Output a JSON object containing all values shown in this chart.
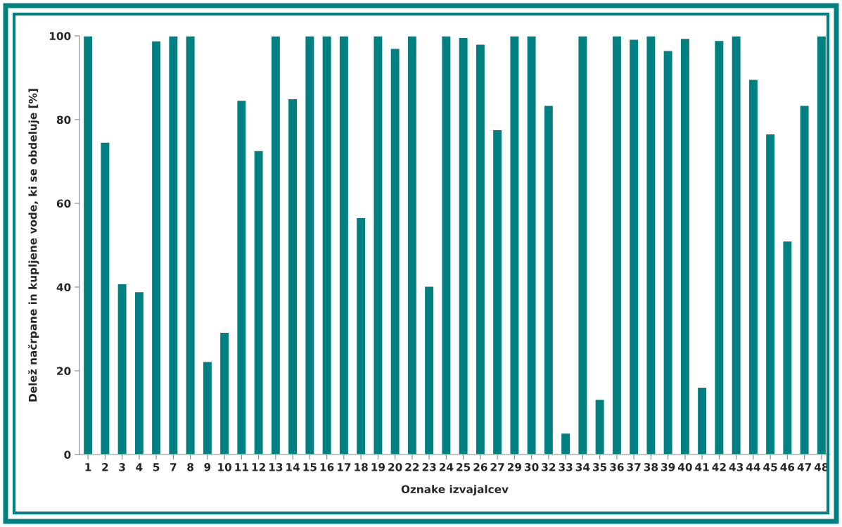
{
  "chart_data": {
    "type": "bar",
    "xlabel": "Oznake izvajalcev",
    "ylabel": "Delež načrpane in kupljene vode, ki se obdeluje [%]",
    "categories": [
      "1",
      "2",
      "3",
      "4",
      "5",
      "7",
      "8",
      "9",
      "10",
      "11",
      "12",
      "13",
      "14",
      "15",
      "16",
      "17",
      "18",
      "19",
      "20",
      "22",
      "23",
      "24",
      "25",
      "26",
      "27",
      "29",
      "30",
      "32",
      "33",
      "34",
      "35",
      "36",
      "37",
      "38",
      "39",
      "40",
      "41",
      "42",
      "43",
      "44",
      "45",
      "46",
      "47",
      "48"
    ],
    "values": [
      100,
      74.6,
      40.8,
      38.9,
      98.8,
      100,
      100,
      22.2,
      29.2,
      84.6,
      72.6,
      100,
      85,
      100,
      100,
      100,
      56.6,
      100,
      97,
      100,
      40.2,
      100,
      99.6,
      98,
      77.6,
      100,
      100,
      83.4,
      5.1,
      100,
      13.2,
      100,
      99.2,
      100,
      96.5,
      99.4,
      16.1,
      98.9,
      100,
      89.6,
      76.6,
      51,
      83.4,
      100
    ],
    "color": "#008080",
    "ylim": [
      0,
      100
    ],
    "yticks": [
      0,
      20,
      40,
      60,
      80,
      100
    ],
    "grid": false,
    "legend": false
  }
}
